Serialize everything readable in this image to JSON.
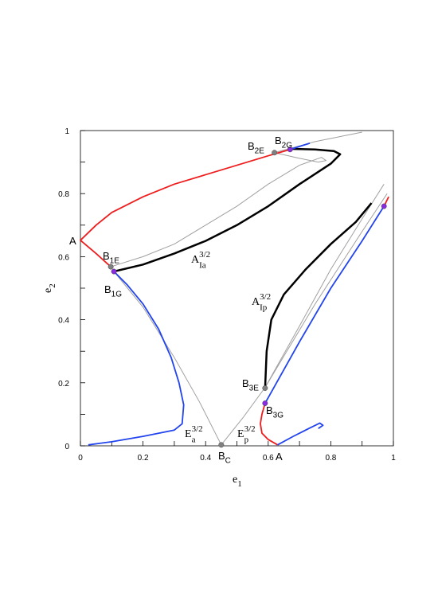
{
  "chart_data": {
    "type": "line",
    "xlabel": {
      "base": "e",
      "sub": "1"
    },
    "ylabel": {
      "base": "e",
      "sub": "2"
    },
    "xlim": [
      0,
      1
    ],
    "ylim": [
      0,
      1
    ],
    "xticks": [
      0,
      0.2,
      0.4,
      0.6,
      0.8,
      1
    ],
    "yticks": [
      0,
      0.2,
      0.4,
      0.6,
      0.8,
      1
    ],
    "series": [
      {
        "color": "#a0a0a0",
        "width": 1,
        "x": [
          0.097,
          0.2,
          0.3,
          0.4,
          0.5,
          0.6,
          0.7,
          0.77,
          0.785,
          0.76,
          0.7,
          0.62
        ],
        "values": [
          0.568,
          0.6,
          0.64,
          0.7,
          0.76,
          0.83,
          0.89,
          0.915,
          0.905,
          0.9,
          0.912,
          0.93
        ]
      },
      {
        "color": "#a0a0a0",
        "width": 1,
        "x": [
          0.62,
          0.75,
          0.9
        ],
        "values": [
          0.93,
          0.965,
          0.995
        ]
      },
      {
        "color": "#a0a0a0",
        "width": 1,
        "x": [
          0.107,
          0.2,
          0.3,
          0.38,
          0.45,
          0.52,
          0.59,
          0.7,
          0.8,
          0.9,
          0.97
        ],
        "values": [
          0.553,
          0.44,
          0.28,
          0.14,
          0.003,
          0.09,
          0.185,
          0.38,
          0.56,
          0.72,
          0.83
        ]
      },
      {
        "color": "#a0a0a0",
        "width": 1,
        "x": [
          0.59,
          0.75,
          0.9,
          0.98
        ],
        "values": [
          0.185,
          0.45,
          0.68,
          0.8
        ]
      },
      {
        "color": "#000000",
        "width": 2.5,
        "x": [
          0.67,
          0.75,
          0.81,
          0.83,
          0.8,
          0.7,
          0.6,
          0.5,
          0.4,
          0.3,
          0.2,
          0.107
        ],
        "values": [
          0.942,
          0.94,
          0.935,
          0.925,
          0.895,
          0.83,
          0.76,
          0.7,
          0.65,
          0.61,
          0.575,
          0.553
        ]
      },
      {
        "color": "#000000",
        "width": 2.5,
        "x": [
          0.59,
          0.595,
          0.61,
          0.65,
          0.72,
          0.8,
          0.88,
          0.93
        ],
        "values": [
          0.18,
          0.3,
          0.4,
          0.48,
          0.56,
          0.64,
          0.71,
          0.77
        ]
      },
      {
        "color": "#ee1c1c",
        "width": 1.8,
        "x": [
          0.097,
          0.05,
          0,
          0.05,
          0.1,
          0.2,
          0.3,
          0.4,
          0.5,
          0.6,
          0.67
        ],
        "values": [
          0.568,
          0.61,
          0.652,
          0.7,
          0.74,
          0.79,
          0.83,
          0.86,
          0.89,
          0.92,
          0.94
        ]
      },
      {
        "color": "#ee1c1c",
        "width": 1.8,
        "x": [
          0.59,
          0.58,
          0.575,
          0.58,
          0.6,
          0.63
        ],
        "values": [
          0.135,
          0.1,
          0.07,
          0.04,
          0.02,
          0.003
        ]
      },
      {
        "color": "#ee1c1c",
        "width": 1.8,
        "x": [
          0.97,
          0.985
        ],
        "values": [
          0.76,
          0.79
        ]
      },
      {
        "color": "#2244ee",
        "width": 1.8,
        "x": [
          0.107,
          0.15,
          0.2,
          0.25,
          0.29,
          0.315,
          0.33,
          0.325,
          0.3,
          0.2,
          0.1,
          0.025
        ],
        "values": [
          0.553,
          0.51,
          0.45,
          0.37,
          0.28,
          0.2,
          0.13,
          0.07,
          0.05,
          0.03,
          0.013,
          0.003
        ]
      },
      {
        "color": "#2244ee",
        "width": 1.8,
        "x": [
          0.67,
          0.733
        ],
        "values": [
          0.94,
          0.96
        ]
      },
      {
        "color": "#2244ee",
        "width": 1.8,
        "x": [
          0.59,
          0.7,
          0.8,
          0.9,
          0.97
        ],
        "values": [
          0.135,
          0.33,
          0.5,
          0.65,
          0.76
        ]
      },
      {
        "color": "#2244ee",
        "width": 1.8,
        "x": [
          0.63,
          0.68,
          0.73,
          0.765,
          0.775,
          0.76
        ],
        "values": [
          0.003,
          0.03,
          0.055,
          0.072,
          0.065,
          0.055
        ]
      }
    ],
    "points": [
      {
        "x": 0.097,
        "y": 0.568,
        "color": "#808080",
        "label": {
          "base": "B",
          "sub": "1E"
        }
      },
      {
        "x": 0.62,
        "y": 0.93,
        "color": "#808080",
        "label": {
          "base": "B",
          "sub": "2E"
        }
      },
      {
        "x": 0.59,
        "y": 0.183,
        "color": "#808080",
        "label": {
          "base": "B",
          "sub": "3E"
        }
      },
      {
        "x": 0.45,
        "y": 0.003,
        "color": "#808080",
        "label": {
          "base": "B",
          "sub": "C"
        }
      },
      {
        "x": 0.107,
        "y": 0.553,
        "color": "#8a2be2",
        "label": {
          "base": "B",
          "sub": "1G"
        }
      },
      {
        "x": 0.67,
        "y": 0.94,
        "color": "#8a2be2",
        "label": {
          "base": "B",
          "sub": "2G"
        }
      },
      {
        "x": 0.59,
        "y": 0.135,
        "color": "#8a2be2",
        "label": {
          "base": "B",
          "sub": "3G"
        }
      },
      {
        "x": 0.97,
        "y": 0.76,
        "color": "#8a2be2"
      }
    ],
    "annotations": [
      {
        "base": "A"
      },
      {
        "base": "A"
      },
      {
        "base": "A",
        "sup": "3/2",
        "sub": "Ia"
      },
      {
        "base": "A",
        "sup": "3/2",
        "sub": "Ip"
      },
      {
        "base": "E",
        "sup": "3/2",
        "sub": "a"
      },
      {
        "base": "E",
        "sup": "3/2",
        "sub": "p"
      }
    ]
  }
}
